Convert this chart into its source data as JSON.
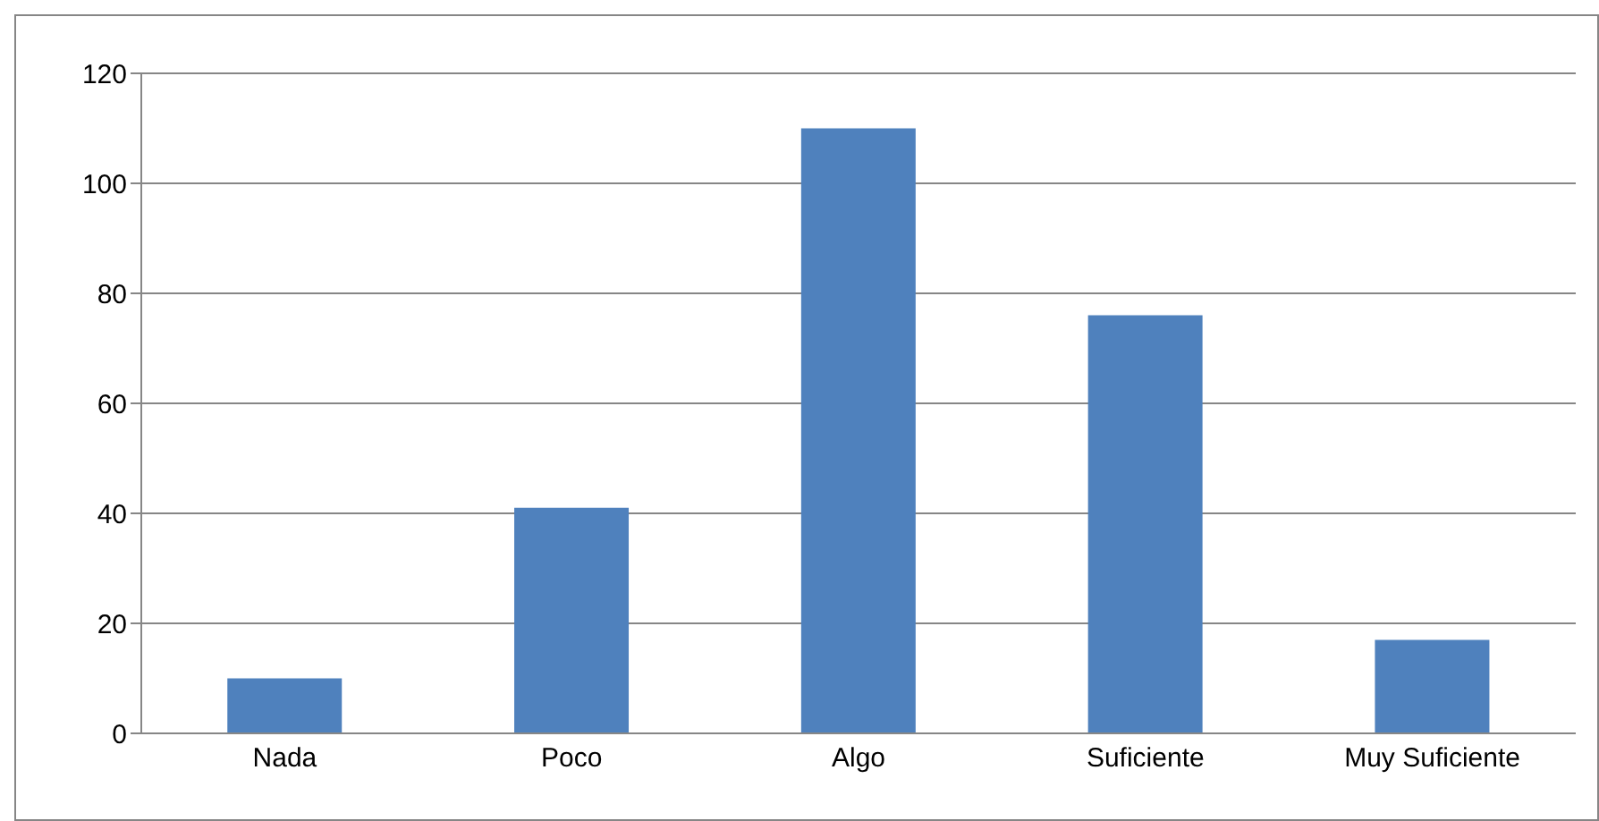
{
  "chart_data": {
    "type": "bar",
    "categories": [
      "Nada",
      "Poco",
      "Algo",
      "Suficiente",
      "Muy Suficiente"
    ],
    "values": [
      10,
      41,
      110,
      76,
      17
    ],
    "color": "#4f81bd",
    "ylim": [
      0,
      120
    ],
    "yticks": [
      0,
      20,
      40,
      60,
      80,
      100,
      120
    ],
    "grid": "y",
    "legend": false
  }
}
